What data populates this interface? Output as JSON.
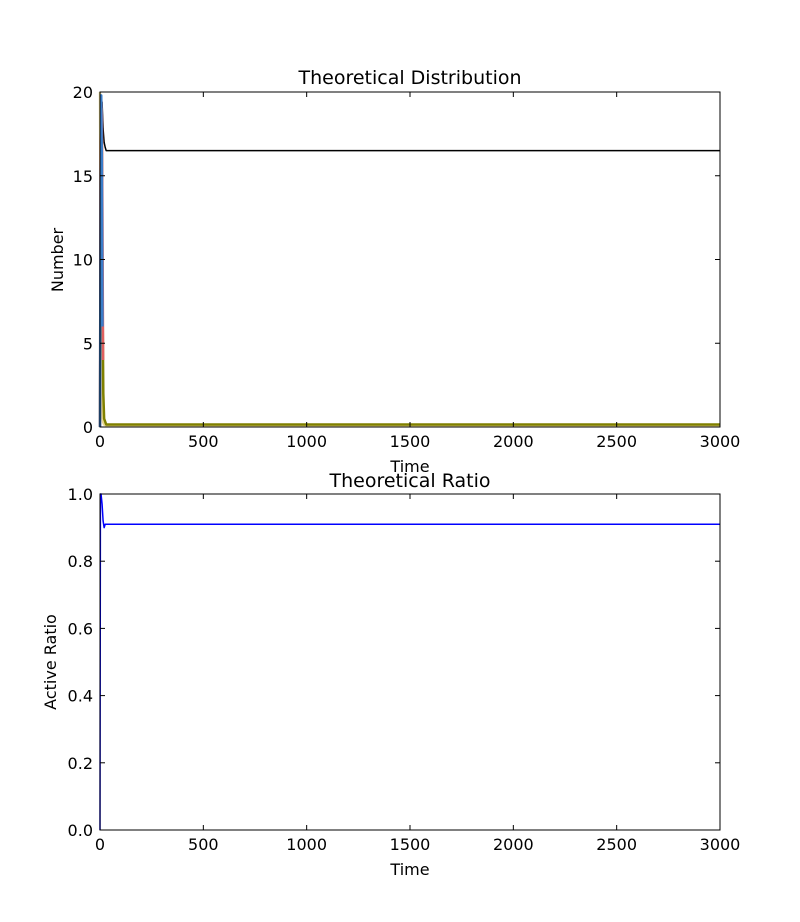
{
  "chart_data": [
    {
      "type": "line",
      "title": "Theoretical Distribution",
      "xlabel": "Time",
      "ylabel": "Number",
      "xlim": [
        0,
        3000
      ],
      "ylim": [
        0,
        20
      ],
      "xticks": [
        "0",
        "500",
        "1000",
        "1500",
        "2000",
        "2500",
        "3000"
      ],
      "yticks": [
        "0",
        "5",
        "10",
        "15",
        "20"
      ],
      "xtick_values": [
        0,
        500,
        1000,
        1500,
        2000,
        2500,
        3000
      ],
      "ytick_values": [
        0,
        5,
        10,
        15,
        20
      ],
      "grid": false,
      "series": [
        {
          "color": "#000000",
          "x": [
            0,
            5,
            10,
            15,
            20,
            25,
            30,
            3000
          ],
          "y": [
            0,
            18.0,
            19.4,
            17.8,
            17.0,
            16.7,
            16.5,
            16.5
          ]
        },
        {
          "color": "#e8d890",
          "x": [
            0,
            5,
            10,
            15,
            20,
            30,
            3000
          ],
          "y": [
            20,
            5.0,
            1.0,
            0.3,
            0.15,
            0.1,
            0.1
          ]
        },
        {
          "color": "#808000",
          "x": [
            0,
            4,
            8,
            12,
            16,
            20,
            30,
            3000
          ],
          "y": [
            0,
            14.0,
            19.0,
            8.0,
            2.0,
            0.5,
            0.15,
            0.15
          ]
        },
        {
          "color": "#e06060",
          "x": [
            0,
            3,
            6,
            9,
            12,
            15
          ],
          "y": [
            0,
            17.0,
            19.6,
            18.5,
            12.0,
            4.0
          ]
        },
        {
          "color": "#3a7dc8",
          "x": [
            0,
            3,
            6,
            9,
            12
          ],
          "y": [
            0,
            15.0,
            19.8,
            16.0,
            6.0
          ]
        }
      ]
    },
    {
      "type": "line",
      "title": "Theoretical Ratio",
      "xlabel": "Time",
      "ylabel": "Active Ratio",
      "xlim": [
        0,
        3000
      ],
      "ylim": [
        0,
        1.0
      ],
      "xticks": [
        "0",
        "500",
        "1000",
        "1500",
        "2000",
        "2500",
        "3000"
      ],
      "yticks": [
        "0.0",
        "0.2",
        "0.4",
        "0.6",
        "0.8",
        "1.0"
      ],
      "xtick_values": [
        0,
        500,
        1000,
        1500,
        2000,
        2500,
        3000
      ],
      "ytick_values": [
        0,
        0.2,
        0.4,
        0.6,
        0.8,
        1.0
      ],
      "grid": false,
      "series": [
        {
          "color": "#0000ff",
          "x": [
            0,
            2,
            5,
            10,
            15,
            20,
            25,
            3000
          ],
          "y": [
            0,
            1.0,
            1.0,
            0.97,
            0.92,
            0.9,
            0.91,
            0.91
          ]
        }
      ]
    }
  ]
}
